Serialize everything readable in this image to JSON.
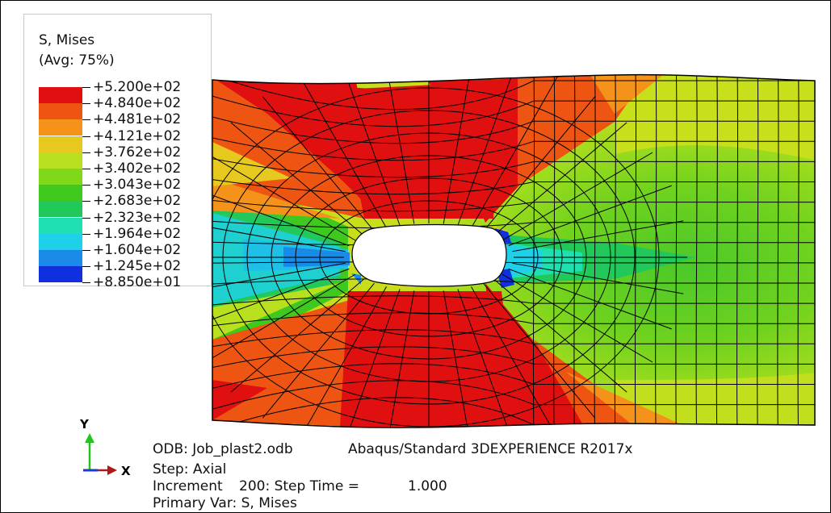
{
  "legend": {
    "title_line1": "S, Mises",
    "title_line2": "(Avg: 75%)",
    "entries": [
      {
        "label": "+5.200e+02",
        "color": "#e01010"
      },
      {
        "label": "+4.840e+02",
        "color": "#ef5512"
      },
      {
        "label": "+4.481e+02",
        "color": "#f5921a"
      },
      {
        "label": "+4.121e+02",
        "color": "#e6c81f"
      },
      {
        "label": "+3.762e+02",
        "color": "#b8e01f"
      },
      {
        "label": "+3.402e+02",
        "color": "#7fd91a"
      },
      {
        "label": "+3.043e+02",
        "color": "#3fc81e"
      },
      {
        "label": "+2.683e+02",
        "color": "#23c85a"
      },
      {
        "label": "+2.323e+02",
        "color": "#1ee0b0"
      },
      {
        "label": "+1.964e+02",
        "color": "#1ed0e8"
      },
      {
        "label": "+1.604e+02",
        "color": "#1a8ae8"
      },
      {
        "label": "+1.245e+02",
        "color": "#1030e0"
      },
      {
        "label": "+8.850e+01",
        "color": null
      }
    ]
  },
  "triad": {
    "y_label": "Y",
    "x_label": "X",
    "y_color": "#22c41c",
    "x_color": "#b01818",
    "z_color": "#1a3ad0"
  },
  "info": {
    "odb": "ODB: Job_plast2.odb",
    "solver": "Abaqus/Standard 3DEXPERIENCE R2017x",
    "step": "Step: Axial",
    "increment": "Increment",
    "increment_value": "200: Step Time =",
    "step_time": "1.000",
    "primary_var": "Primary Var: S, Mises"
  }
}
